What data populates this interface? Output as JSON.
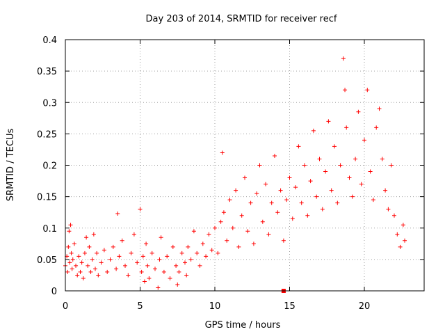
{
  "chart_data": {
    "type": "scatter",
    "title": "Day 203 of 2014, SRMTID for receiver recf",
    "xlabel": "GPS time / hours",
    "ylabel": "SRMTID / TECUs",
    "xlim": [
      0,
      24
    ],
    "ylim": [
      0,
      0.4
    ],
    "x_ticks": [
      0,
      5,
      10,
      15,
      20
    ],
    "y_ticks": [
      0,
      0.05,
      0.1,
      0.15,
      0.2,
      0.25,
      0.3,
      0.35,
      0.4
    ],
    "x_tick_labels": [
      "0",
      "5",
      "10",
      "15",
      "20"
    ],
    "y_tick_labels": [
      "0",
      "0.05",
      "0.1",
      "0.15",
      "0.2",
      "0.25",
      "0.3",
      "0.35",
      "0.4"
    ],
    "grid": true,
    "marker": "+",
    "color": "#ff0000",
    "series": [
      {
        "name": "SRMTID",
        "points": [
          [
            0.0,
            0.04
          ],
          [
            0.1,
            0.055
          ],
          [
            0.15,
            0.03
          ],
          [
            0.2,
            0.07
          ],
          [
            0.25,
            0.095
          ],
          [
            0.3,
            0.045
          ],
          [
            0.35,
            0.105
          ],
          [
            0.4,
            0.06
          ],
          [
            0.45,
            0.035
          ],
          [
            0.5,
            0.05
          ],
          [
            0.6,
            0.075
          ],
          [
            0.7,
            0.04
          ],
          [
            0.8,
            0.025
          ],
          [
            0.9,
            0.055
          ],
          [
            1.0,
            0.03
          ],
          [
            1.1,
            0.045
          ],
          [
            1.2,
            0.02
          ],
          [
            1.3,
            0.06
          ],
          [
            1.4,
            0.085
          ],
          [
            1.5,
            0.04
          ],
          [
            1.6,
            0.07
          ],
          [
            1.7,
            0.03
          ],
          [
            1.8,
            0.05
          ],
          [
            1.9,
            0.09
          ],
          [
            2.0,
            0.035
          ],
          [
            2.1,
            0.06
          ],
          [
            2.2,
            0.025
          ],
          [
            2.4,
            0.045
          ],
          [
            2.6,
            0.065
          ],
          [
            2.8,
            0.03
          ],
          [
            3.0,
            0.05
          ],
          [
            3.2,
            0.07
          ],
          [
            3.4,
            0.035
          ],
          [
            3.5,
            0.123
          ],
          [
            3.6,
            0.055
          ],
          [
            3.8,
            0.08
          ],
          [
            4.0,
            0.04
          ],
          [
            4.2,
            0.025
          ],
          [
            4.4,
            0.06
          ],
          [
            4.6,
            0.09
          ],
          [
            4.8,
            0.045
          ],
          [
            5.0,
            0.13
          ],
          [
            5.1,
            0.03
          ],
          [
            5.2,
            0.055
          ],
          [
            5.3,
            0.015
          ],
          [
            5.4,
            0.075
          ],
          [
            5.5,
            0.04
          ],
          [
            5.6,
            0.02
          ],
          [
            5.8,
            0.06
          ],
          [
            6.0,
            0.035
          ],
          [
            6.2,
            0.005
          ],
          [
            6.3,
            0.05
          ],
          [
            6.4,
            0.085
          ],
          [
            6.6,
            0.03
          ],
          [
            6.8,
            0.055
          ],
          [
            7.0,
            0.02
          ],
          [
            7.2,
            0.07
          ],
          [
            7.4,
            0.04
          ],
          [
            7.5,
            0.01
          ],
          [
            7.6,
            0.03
          ],
          [
            7.8,
            0.06
          ],
          [
            8.0,
            0.045
          ],
          [
            8.1,
            0.025
          ],
          [
            8.2,
            0.07
          ],
          [
            8.4,
            0.05
          ],
          [
            8.6,
            0.095
          ],
          [
            8.8,
            0.06
          ],
          [
            9.0,
            0.04
          ],
          [
            9.2,
            0.075
          ],
          [
            9.4,
            0.055
          ],
          [
            9.6,
            0.09
          ],
          [
            9.8,
            0.065
          ],
          [
            10.0,
            0.1
          ],
          [
            10.2,
            0.06
          ],
          [
            10.4,
            0.11
          ],
          [
            10.5,
            0.22
          ],
          [
            10.6,
            0.125
          ],
          [
            10.8,
            0.08
          ],
          [
            11.0,
            0.145
          ],
          [
            11.2,
            0.1
          ],
          [
            11.4,
            0.16
          ],
          [
            11.6,
            0.07
          ],
          [
            11.8,
            0.12
          ],
          [
            12.0,
            0.18
          ],
          [
            12.2,
            0.095
          ],
          [
            12.4,
            0.14
          ],
          [
            12.6,
            0.075
          ],
          [
            12.8,
            0.155
          ],
          [
            13.0,
            0.2
          ],
          [
            13.2,
            0.11
          ],
          [
            13.4,
            0.17
          ],
          [
            13.6,
            0.09
          ],
          [
            13.8,
            0.14
          ],
          [
            14.0,
            0.215
          ],
          [
            14.2,
            0.125
          ],
          [
            14.4,
            0.16
          ],
          [
            14.6,
            0.08
          ],
          [
            14.8,
            0.145
          ],
          [
            15.0,
            0.18
          ],
          [
            15.2,
            0.115
          ],
          [
            15.4,
            0.165
          ],
          [
            15.6,
            0.23
          ],
          [
            15.8,
            0.14
          ],
          [
            16.0,
            0.2
          ],
          [
            16.2,
            0.12
          ],
          [
            16.4,
            0.175
          ],
          [
            16.6,
            0.255
          ],
          [
            16.8,
            0.15
          ],
          [
            17.0,
            0.21
          ],
          [
            17.2,
            0.13
          ],
          [
            17.4,
            0.19
          ],
          [
            17.6,
            0.27
          ],
          [
            17.8,
            0.16
          ],
          [
            18.0,
            0.23
          ],
          [
            18.2,
            0.14
          ],
          [
            18.4,
            0.2
          ],
          [
            18.6,
            0.37
          ],
          [
            18.7,
            0.32
          ],
          [
            18.8,
            0.26
          ],
          [
            19.0,
            0.18
          ],
          [
            19.2,
            0.15
          ],
          [
            19.4,
            0.21
          ],
          [
            19.6,
            0.285
          ],
          [
            19.8,
            0.17
          ],
          [
            20.0,
            0.24
          ],
          [
            20.2,
            0.32
          ],
          [
            20.4,
            0.19
          ],
          [
            20.6,
            0.145
          ],
          [
            20.8,
            0.26
          ],
          [
            21.0,
            0.29
          ],
          [
            21.2,
            0.21
          ],
          [
            21.4,
            0.16
          ],
          [
            21.6,
            0.13
          ],
          [
            21.8,
            0.2
          ],
          [
            22.0,
            0.12
          ],
          [
            22.2,
            0.09
          ],
          [
            22.4,
            0.07
          ],
          [
            22.6,
            0.105
          ],
          [
            22.7,
            0.08
          ]
        ]
      }
    ],
    "annotations": [
      {
        "type": "square-marker",
        "x": 14.6,
        "y": 0.0
      }
    ]
  }
}
